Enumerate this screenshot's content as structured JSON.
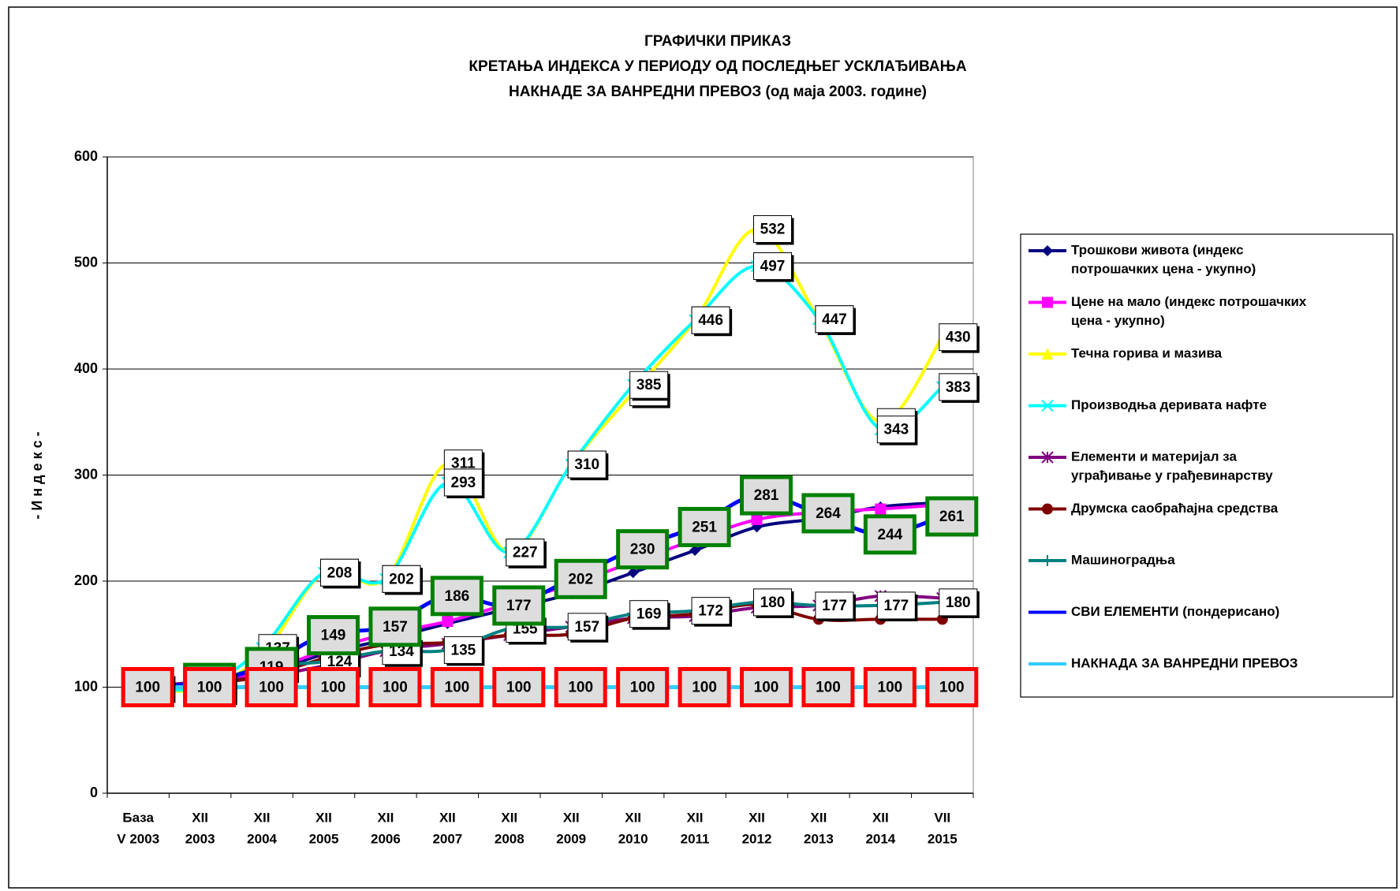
{
  "chart_data": {
    "type": "line",
    "title": [
      "ГРАФИЧКИ ПРИКАЗ",
      "КРЕТАЊА ИНДЕКСА У ПЕРИОДУ ОД ПОСЛЕДЊЕГ УСКЛАЂИВАЊА",
      "НАКНАДЕ ЗА ВАНРЕДНИ ПРЕВОЗ (од маја 2003. године)"
    ],
    "y_label": "- И н д е к с -",
    "categories": [
      [
        "База",
        "V 2003"
      ],
      [
        "XII",
        "2003"
      ],
      [
        "XII",
        "2004"
      ],
      [
        "XII",
        "2005"
      ],
      [
        "XII",
        "2006"
      ],
      [
        "XII",
        "2007"
      ],
      [
        "XII",
        "2008"
      ],
      [
        "XII",
        "2009"
      ],
      [
        "XII",
        "2010"
      ],
      [
        "XII",
        "2011"
      ],
      [
        "XII",
        "2012"
      ],
      [
        "XII",
        "2013"
      ],
      [
        "XII",
        "2014"
      ],
      [
        "VII",
        "2015"
      ]
    ],
    "ylim": [
      0,
      600
    ],
    "yticks": [
      0,
      100,
      200,
      300,
      400,
      500,
      600
    ],
    "grid": true,
    "legend": "right",
    "series": [
      {
        "name": [
          "Трошкови живота (индекс",
          "потрошачких цена - укупно)"
        ],
        "color": "#000080",
        "marker": "diamond",
        "label_box": null,
        "values": [
          100,
          103,
          113,
          131,
          145,
          160,
          174,
          188,
          208,
          229,
          251,
          259,
          270,
          274
        ]
      },
      {
        "name": [
          "Цене на мало (индекс потрошачких",
          "цена - укупно)"
        ],
        "color": "#ff00ff",
        "marker": "square",
        "label_box": null,
        "values": [
          100,
          103,
          114,
          134,
          150,
          162,
          179,
          197,
          218,
          239,
          258,
          265,
          268,
          272
        ]
      },
      {
        "name": [
          "Течна горива и мазива"
        ],
        "color": "#ffff00",
        "marker": "triangle",
        "label_box": "#ffffff",
        "values": [
          100,
          98,
          130,
          208,
          202,
          311,
          227,
          310,
          378,
          446,
          532,
          447,
          350,
          430
        ]
      },
      {
        "name": [
          "Производња деривата нафте"
        ],
        "color": "#00ffff",
        "marker": "x",
        "label_box": "#ffffff",
        "values": [
          100,
          100,
          137,
          208,
          202,
          293,
          227,
          310,
          385,
          446,
          497,
          447,
          343,
          383
        ]
      },
      {
        "name": [
          "Елементи и материјал за",
          "уграђивање у грађевинарству"
        ],
        "color": "#800080",
        "marker": "asterisk",
        "label_box": null,
        "values": [
          100,
          105,
          110,
          120,
          134,
          141,
          149,
          157,
          165,
          167,
          175,
          177,
          186,
          184
        ]
      },
      {
        "name": [
          "Друмска саобраћајна средства"
        ],
        "color": "#800000",
        "marker": "circle",
        "label_box": null,
        "values": [
          100,
          103,
          110,
          127,
          140,
          142,
          149,
          150,
          165,
          169,
          178,
          164,
          164,
          164
        ]
      },
      {
        "name": [
          "Машиноградња"
        ],
        "color": "#008080",
        "marker": "plus",
        "label_box": "#ffffff",
        "values": [
          100,
          102,
          119,
          124,
          134,
          135,
          155,
          157,
          169,
          172,
          180,
          177,
          177,
          180
        ]
      },
      {
        "name": [
          "СВИ ЕЛЕМЕНТИ (пондерисано)"
        ],
        "color": "#0000ff",
        "marker": "none",
        "label_box": "#008000",
        "values": [
          100,
          104,
          119,
          149,
          157,
          186,
          177,
          202,
          230,
          251,
          281,
          264,
          244,
          261
        ]
      },
      {
        "name": [
          "НАКНАДА ЗА ВАНРЕДНИ ПРЕВОЗ"
        ],
        "color": "#33ccff",
        "marker": "none",
        "label_box": "#ff0000",
        "values": [
          100,
          100,
          100,
          100,
          100,
          100,
          100,
          100,
          100,
          100,
          100,
          100,
          100,
          100
        ]
      }
    ]
  }
}
